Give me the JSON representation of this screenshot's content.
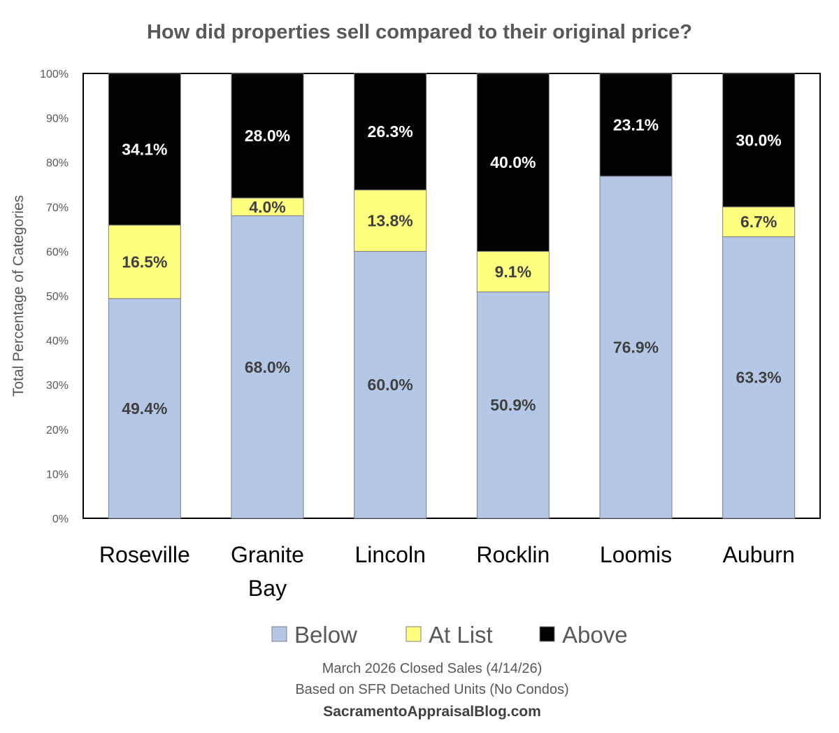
{
  "chart_data": {
    "type": "bar",
    "stacked": true,
    "title": "How did properties sell compared to their original price?",
    "ylabel": "Total Percentage of Categories",
    "xlabel": "",
    "ylim": [
      0,
      100
    ],
    "yticks": [
      "0%",
      "10%",
      "20%",
      "30%",
      "40%",
      "50%",
      "60%",
      "70%",
      "80%",
      "90%",
      "100%"
    ],
    "categories": [
      "Roseville",
      "Granite Bay",
      "Lincoln",
      "Rocklin",
      "Loomis",
      "Auburn"
    ],
    "series": [
      {
        "name": "Below",
        "color": "#b4c7e7",
        "values": [
          49.4,
          68.0,
          60.0,
          50.9,
          76.9,
          63.3
        ]
      },
      {
        "name": "At List",
        "color": "#ffff80",
        "values": [
          16.5,
          4.0,
          13.8,
          9.1,
          0,
          6.7
        ]
      },
      {
        "name": "Above",
        "color": "#000000",
        "values": [
          34.1,
          28.0,
          26.3,
          40.0,
          23.1,
          30.0
        ]
      }
    ],
    "legend": "bottom",
    "grid": false
  },
  "footer": {
    "line1": "March 2026 Closed Sales (4/14/26)",
    "line2": "Based on SFR Detached Units (No Condos)",
    "source": "SacramentoAppraisalBlog.com"
  }
}
